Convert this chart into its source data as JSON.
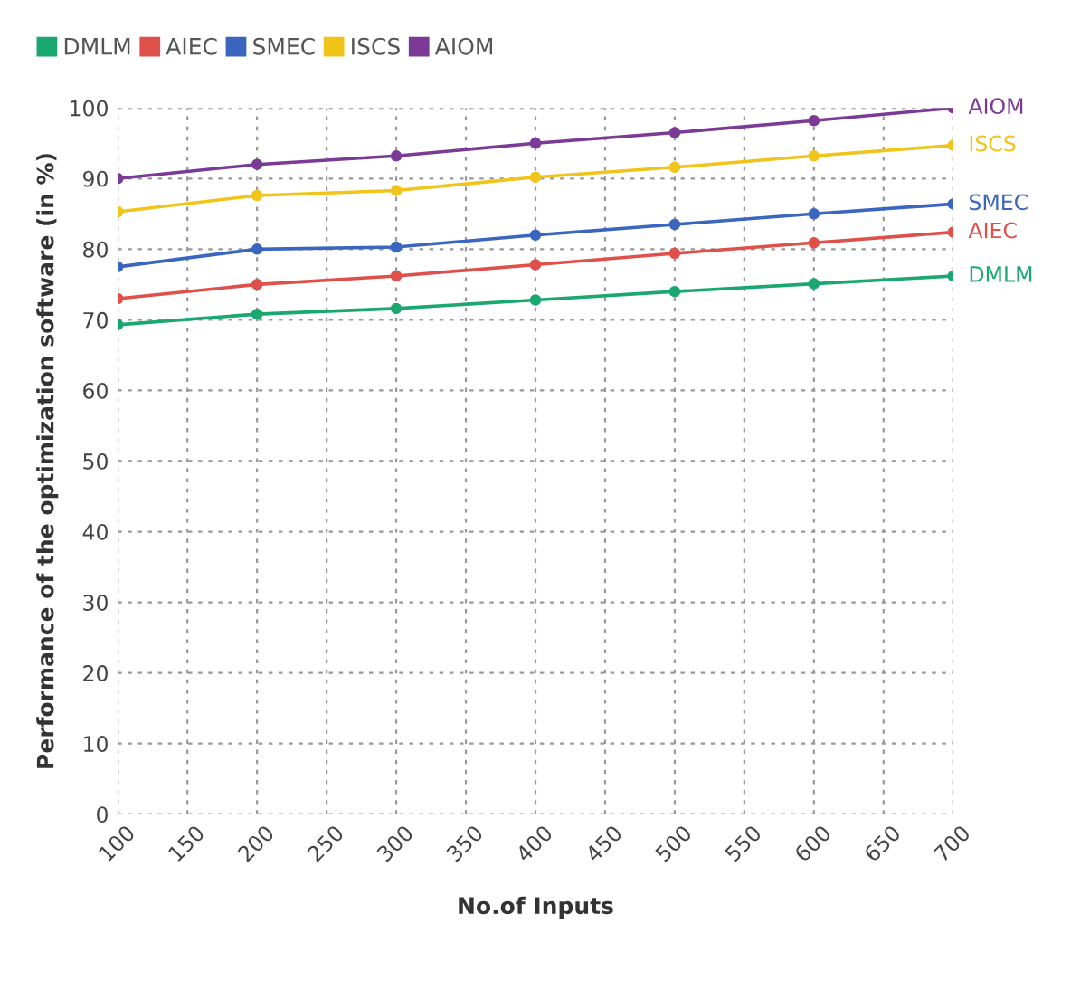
{
  "chart_data": {
    "type": "line",
    "xlabel": "No.of Inputs",
    "ylabel": "Performance of the optimization software (in %)",
    "x": [
      100,
      200,
      300,
      400,
      500,
      600,
      700
    ],
    "xlim": [
      100,
      700
    ],
    "xticks": [
      100,
      150,
      200,
      250,
      300,
      350,
      400,
      450,
      500,
      550,
      600,
      650,
      700
    ],
    "ylim": [
      0,
      100
    ],
    "yticks": [
      0,
      10,
      20,
      30,
      40,
      50,
      60,
      70,
      80,
      90,
      100
    ],
    "grid": true,
    "legend": "top left",
    "marker": "circle",
    "line_style": "solid",
    "series": [
      {
        "name": "DMLM",
        "color": "#1aa870",
        "values": [
          69.3,
          70.8,
          71.6,
          72.8,
          74,
          75.1,
          76.2
        ]
      },
      {
        "name": "AIEC",
        "color": "#e0504a",
        "values": [
          73,
          75,
          76.2,
          77.8,
          79.4,
          80.9,
          82.4
        ]
      },
      {
        "name": "SMEC",
        "color": "#3a66c0",
        "values": [
          77.5,
          80,
          80.3,
          82,
          83.5,
          85,
          86.4
        ]
      },
      {
        "name": "ISCS",
        "color": "#f0c419",
        "values": [
          85.3,
          87.6,
          88.3,
          90.2,
          91.6,
          93.2,
          94.7
        ]
      },
      {
        "name": "AIOM",
        "color": "#7b3a96",
        "values": [
          90,
          92,
          93.2,
          95,
          96.5,
          98.2,
          100
        ]
      }
    ]
  }
}
